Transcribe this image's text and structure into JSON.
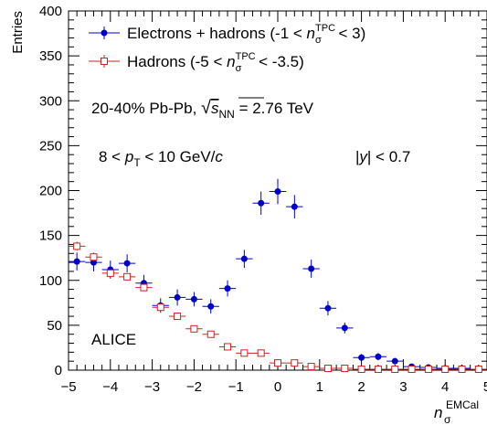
{
  "chart_data": {
    "type": "scatter",
    "ylabel": "Entries",
    "xlabel": {
      "base": "n",
      "sup": "EMCal",
      "sub": "σ"
    },
    "xlim": [
      -5,
      5
    ],
    "ylim": [
      0,
      400
    ],
    "x_ticks": [
      -5,
      -4,
      -3,
      -2,
      -1,
      0,
      1,
      2,
      3,
      4,
      5
    ],
    "x_tick_labels": [
      "−5",
      "−4",
      "−3",
      "−2",
      "−1",
      "0",
      "1",
      "2",
      "3",
      "4",
      "5"
    ],
    "y_ticks": [
      0,
      50,
      100,
      150,
      200,
      250,
      300,
      350,
      400
    ],
    "y_tick_labels": [
      "0",
      "50",
      "100",
      "150",
      "200",
      "250",
      "300",
      "350",
      "400"
    ],
    "grid": false,
    "legend_position": "top-left",
    "legend": [
      {
        "pre": "Electrons + hadrons (-1 < ",
        "n": "n",
        "sup": "TPC",
        "sub": "σ",
        "post": " < 3)"
      },
      {
        "pre": "Hadrons (-5 < ",
        "n": "n",
        "sup": "TPC",
        "sub": "σ",
        "post": " < -3.5)"
      }
    ],
    "annotations": {
      "system": {
        "pre": "20-40% Pb-Pb, ",
        "s": "s",
        "sub": "NN",
        "post": " = 2.76 TeV"
      },
      "pt": {
        "pre": "8 < ",
        "p": "p",
        "sub": "T",
        "post": " < 10 GeV/",
        "c": "c"
      },
      "rapidity": {
        "pre": "|",
        "y": "y",
        "post": "| < 0.7"
      },
      "experiment": "ALICE"
    },
    "series": [
      {
        "name": "Electrons + hadrons",
        "color": "#0000cc",
        "marker": "filled-circle",
        "x": [
          -4.8,
          -4.4,
          -4.0,
          -3.6,
          -3.2,
          -2.8,
          -2.4,
          -2.0,
          -1.6,
          -1.2,
          -0.8,
          -0.4,
          0.0,
          0.4,
          0.8,
          1.2,
          1.6,
          2.0,
          2.4,
          2.8,
          3.2,
          3.6,
          4.0,
          4.4,
          4.8
        ],
        "y": [
          121,
          120,
          112,
          119,
          97,
          72,
          81,
          79,
          71,
          91,
          124,
          186,
          199,
          182,
          113,
          69,
          47,
          14,
          15,
          10,
          4,
          3,
          2,
          2,
          1
        ],
        "err": [
          10,
          10,
          10,
          10,
          9,
          8,
          9,
          8,
          8,
          9,
          10,
          13,
          14,
          13,
          10,
          8,
          6,
          4,
          4,
          3,
          2,
          2,
          1.5,
          1.5,
          1
        ]
      },
      {
        "name": "Hadrons",
        "color": "#cc2222",
        "marker": "open-square",
        "x": [
          -4.8,
          -4.4,
          -4.0,
          -3.6,
          -3.2,
          -2.8,
          -2.4,
          -2.0,
          -1.6,
          -1.2,
          -0.8,
          -0.4,
          0.0,
          0.4,
          0.8,
          1.2,
          1.6,
          2.0,
          2.4,
          2.8,
          3.2,
          3.6,
          4.0,
          4.4,
          4.8
        ],
        "y": [
          138,
          126,
          108,
          104,
          92,
          70,
          60,
          46,
          40,
          26,
          19,
          19,
          8,
          8,
          4,
          2,
          2,
          1,
          1,
          1,
          1,
          1,
          1,
          1,
          1
        ],
        "err": [
          5,
          5,
          4,
          4,
          4,
          3.5,
          3,
          3,
          3,
          2.5,
          2,
          2,
          1.5,
          1.5,
          1,
          1,
          1,
          1,
          1,
          1,
          1,
          1,
          1,
          1,
          1
        ]
      }
    ]
  }
}
